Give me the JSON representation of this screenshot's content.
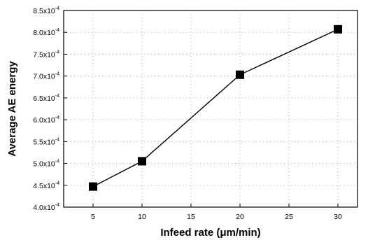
{
  "chart_data": {
    "type": "line",
    "xlabel": "Infeed rate (μm/min)",
    "ylabel": "Average AE energy",
    "xlim": [
      2,
      32
    ],
    "ylim": [
      0.0004,
      0.00085
    ],
    "x_ticks": [
      5,
      10,
      15,
      20,
      25,
      30
    ],
    "y_ticks": [
      {
        "value": 0.0004,
        "mantissa": "4.0x10",
        "exp": "-4"
      },
      {
        "value": 0.00045,
        "mantissa": "4.5x10",
        "exp": "-4"
      },
      {
        "value": 0.0005,
        "mantissa": "5.0x10",
        "exp": "-4"
      },
      {
        "value": 0.00055,
        "mantissa": "5.5x10",
        "exp": "-4"
      },
      {
        "value": 0.0006,
        "mantissa": "6.0x10",
        "exp": "-4"
      },
      {
        "value": 0.00065,
        "mantissa": "6.5x10",
        "exp": "-4"
      },
      {
        "value": 0.0007,
        "mantissa": "7.0x10",
        "exp": "-4"
      },
      {
        "value": 0.00075,
        "mantissa": "7.5x10",
        "exp": "-4"
      },
      {
        "value": 0.0008,
        "mantissa": "8.0x10",
        "exp": "-4"
      },
      {
        "value": 0.00085,
        "mantissa": "8.5x10",
        "exp": "-4"
      }
    ],
    "grid": "dotted",
    "series": [
      {
        "marker": "square",
        "color": "#000000",
        "x": [
          5,
          10,
          20,
          30
        ],
        "values": [
          0.000447,
          0.000505,
          0.000703,
          0.000807
        ]
      }
    ]
  }
}
